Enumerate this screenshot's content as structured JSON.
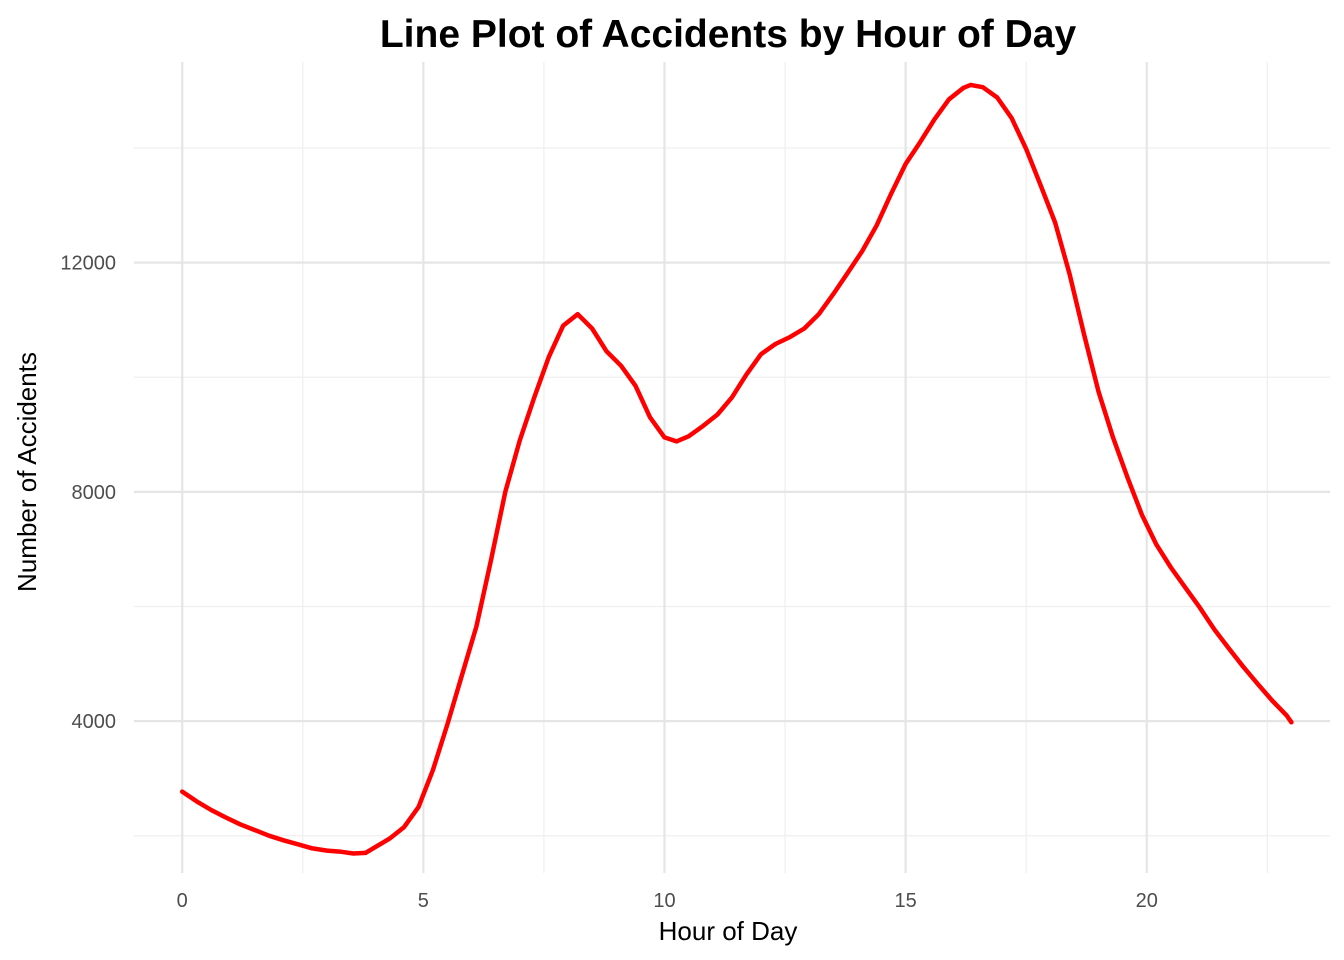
{
  "chart_data": {
    "type": "line",
    "title": "Line Plot of Accidents by Hour of Day",
    "xlabel": "Hour of Day",
    "ylabel": "Number of Accidents",
    "xlim": [
      -1,
      23.8
    ],
    "ylim": [
      1350,
      15500
    ],
    "x_ticks": [
      0,
      5,
      10,
      15,
      20
    ],
    "y_ticks": [
      4000,
      8000,
      12000
    ],
    "grid": true,
    "legend": "none",
    "colors": {
      "line": "#ff0000"
    },
    "series": [
      {
        "x": [
          0,
          0.3,
          0.6,
          0.9,
          1.2,
          1.5,
          1.8,
          2.1,
          2.4,
          2.7,
          3.0,
          3.3,
          3.55,
          3.8,
          4.0,
          4.3,
          4.6,
          4.9,
          5.2,
          5.5,
          5.8,
          6.1,
          6.4,
          6.7,
          7.0,
          7.3,
          7.6,
          7.9,
          8.2,
          8.5,
          8.8,
          9.1,
          9.4,
          9.7,
          10.0,
          10.25,
          10.5,
          10.8,
          11.1,
          11.4,
          11.7,
          12.0,
          12.3,
          12.6,
          12.9,
          13.2,
          13.5,
          13.8,
          14.1,
          14.4,
          14.7,
          15.0,
          15.3,
          15.6,
          15.9,
          16.2,
          16.35,
          16.6,
          16.9,
          17.2,
          17.5,
          17.8,
          18.1,
          18.4,
          18.7,
          19.0,
          19.3,
          19.6,
          19.9,
          20.2,
          20.5,
          20.8,
          21.1,
          21.4,
          21.7,
          22.0,
          22.3,
          22.6,
          22.9,
          23.0
        ],
        "values": [
          2770,
          2600,
          2450,
          2320,
          2200,
          2100,
          2000,
          1920,
          1850,
          1780,
          1740,
          1720,
          1690,
          1700,
          1800,
          1950,
          2150,
          2500,
          3150,
          3950,
          4800,
          5650,
          6800,
          8000,
          8900,
          9650,
          10350,
          10900,
          11100,
          10850,
          10450,
          10200,
          9850,
          9300,
          8950,
          8880,
          8970,
          9150,
          9350,
          9650,
          10050,
          10400,
          10580,
          10700,
          10850,
          11100,
          11450,
          11820,
          12200,
          12650,
          13200,
          13720,
          14100,
          14500,
          14850,
          15050,
          15100,
          15060,
          14880,
          14520,
          13980,
          13350,
          12700,
          11800,
          10750,
          9750,
          8950,
          8250,
          7600,
          7080,
          6680,
          6330,
          5980,
          5600,
          5270,
          4950,
          4650,
          4360,
          4100,
          3980
        ]
      }
    ]
  }
}
